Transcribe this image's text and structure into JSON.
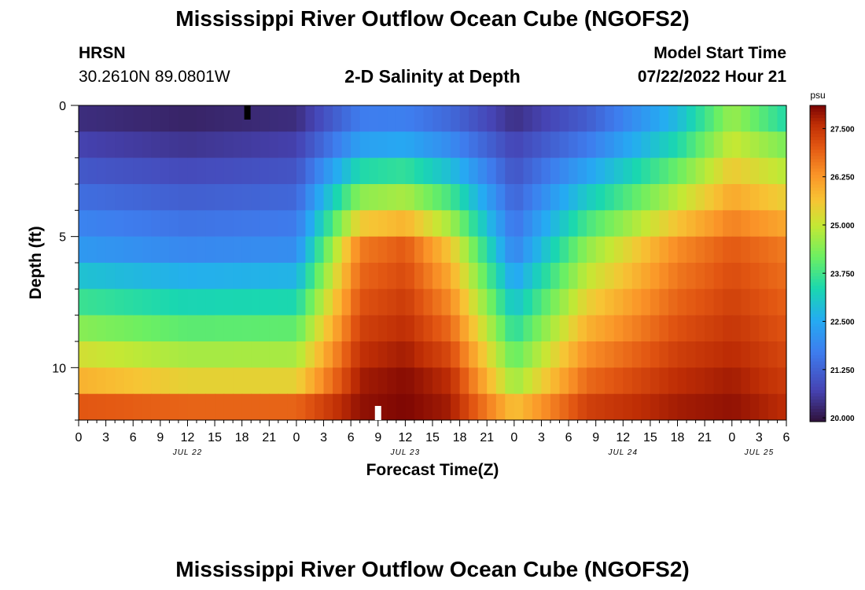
{
  "header": {
    "title": "Mississippi River Outflow Ocean Cube (NGOFS2)",
    "station": "HRSN",
    "coordinates": "30.2610N  89.0801W",
    "subtitle": "2-D Salinity at Depth",
    "model_start_label": "Model Start Time",
    "model_start_value": "07/22/2022 Hour 21"
  },
  "footer": {
    "repeated_title": "Mississippi River Outflow Ocean Cube (NGOFS2)"
  },
  "chart_data": {
    "type": "heatmap",
    "title": "2-D Salinity at Depth",
    "xlabel": "Forecast Time(Z)",
    "ylabel": "Depth (ft)",
    "x_hours_range": [
      0,
      78
    ],
    "x_tick_labels": [
      "0",
      "3",
      "6",
      "9",
      "12",
      "15",
      "18",
      "21",
      "0",
      "3",
      "6",
      "9",
      "12",
      "15",
      "18",
      "21",
      "0",
      "3",
      "6",
      "9",
      "12",
      "15",
      "18",
      "21",
      "0",
      "3",
      "6"
    ],
    "date_labels": [
      {
        "text": "JUL 22",
        "hour": 12
      },
      {
        "text": "JUL 23",
        "hour": 36
      },
      {
        "text": "JUL 24",
        "hour": 60
      },
      {
        "text": "JUL 25",
        "hour": 75
      }
    ],
    "ylim": [
      0,
      12
    ],
    "y_ticks": [
      0,
      5,
      10
    ],
    "depth_levels_ft": [
      0.5,
      1.5,
      2.5,
      3.5,
      4.5,
      5.5,
      6.5,
      7.5,
      8.5,
      9.5,
      10.5,
      11.5
    ],
    "colorbar": {
      "unit": "psu",
      "min": 19.9,
      "max": 28.1,
      "ticks": [
        "20.000",
        "21.250",
        "22.500",
        "23.750",
        "25.000",
        "26.250",
        "27.500"
      ]
    },
    "salinity_profile_psu": {
      "description_times_hours": [
        0,
        12,
        24,
        31,
        36,
        41,
        48,
        56,
        66,
        72,
        78
      ],
      "surface_layer": [
        20.2,
        20.1,
        20.2,
        21.6,
        21.6,
        21.2,
        20.2,
        21.0,
        22.6,
        24.4,
        22.8
      ],
      "layer_0.5-1.5_ft": [
        20.5,
        20.3,
        20.5,
        21.8,
        21.9,
        21.5,
        20.6,
        21.3,
        23.0,
        24.8,
        24.0
      ],
      "layer_5-6_ft": [
        22.2,
        21.9,
        22.0,
        26.6,
        27.0,
        25.6,
        21.8,
        24.5,
        26.4,
        27.0,
        26.6
      ],
      "layer_10-11_ft": [
        25.9,
        25.4,
        25.4,
        27.8,
        28.0,
        27.6,
        24.6,
        26.8,
        27.6,
        27.8,
        27.4
      ],
      "bottom_layer": [
        27.6,
        27.6,
        27.6,
        28.0,
        28.1,
        27.9,
        26.2,
        27.6,
        27.9,
        28.0,
        27.7
      ]
    }
  }
}
